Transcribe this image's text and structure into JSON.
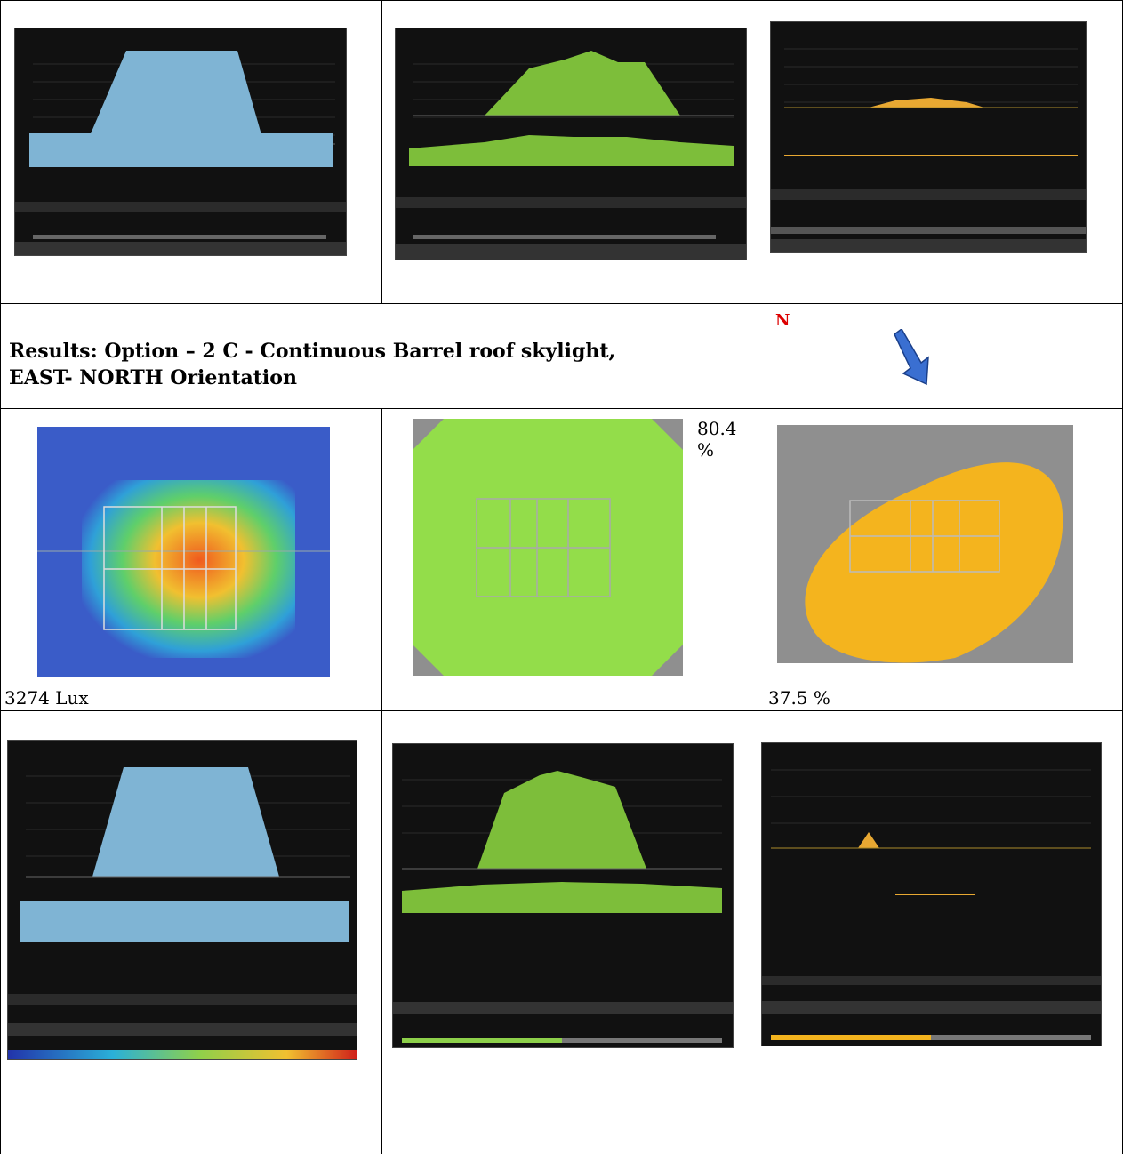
{
  "section": {
    "title_line1": "Results: Option – 2 C - Continuous Barrel roof skylight,",
    "title_line2": "EAST- NORTH Orientation"
  },
  "orientation": {
    "north_label": "N",
    "arrow_color": "#3a6fd1"
  },
  "results": {
    "illuminance": "3274 Lux",
    "daylight_autonomy": "80.4 %",
    "useful_daylight": "37.5 %"
  },
  "colors": {
    "blue_series": "#7fb4d4",
    "green_series": "#7dbe3a",
    "orange_series": "#e8a832",
    "panel_bg": "#111111"
  }
}
